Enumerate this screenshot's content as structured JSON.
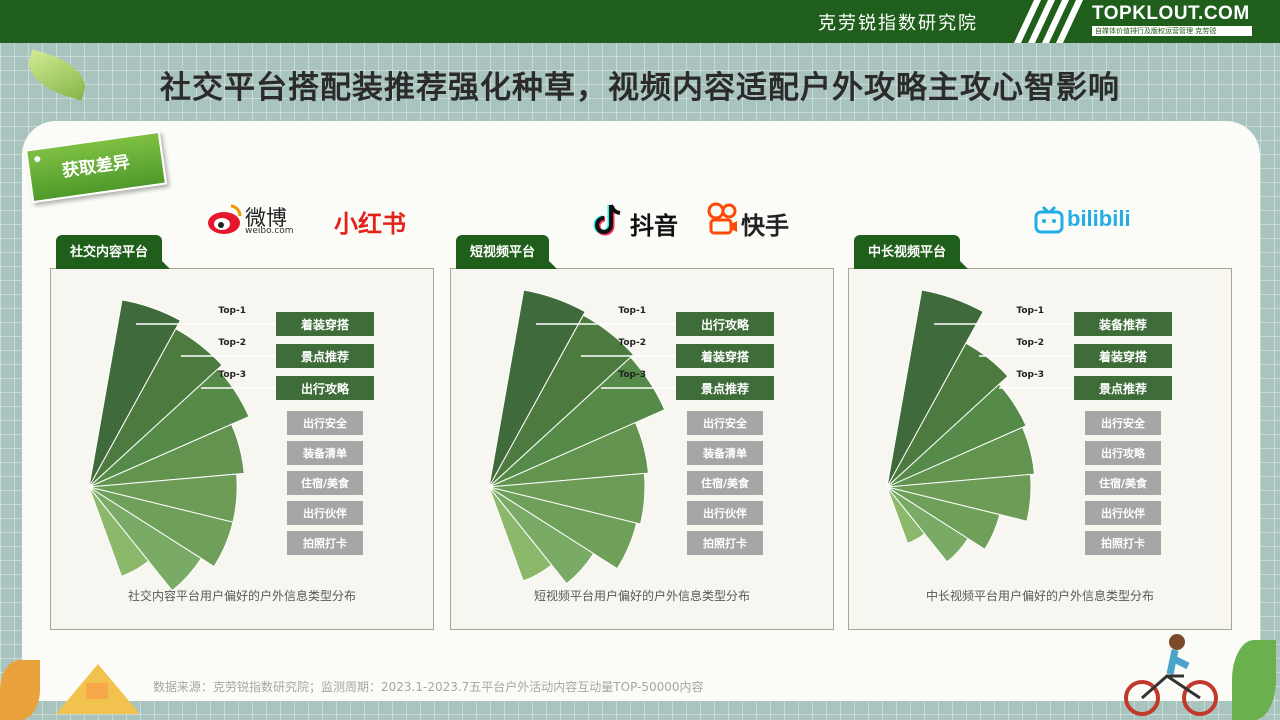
{
  "header": {
    "institute": "克劳锐指数研究院",
    "brand": "TOPKLOUT.COM",
    "brand_sub": "自媒体价值排行及版权运营管理 克劳锐"
  },
  "title": "社交平台搭配装推荐强化种草，视频内容适配户外攻略主攻心智影响",
  "tag": "获取差异",
  "logos": {
    "weibo": "微博",
    "weibo_sub": "weibo.com",
    "xiaohongshu": "小红书",
    "douyin": "抖音",
    "kuaishou": "快手",
    "bilibili": "bilibili"
  },
  "colors": {
    "header_green": "#1f5f1b",
    "top_box": "#3f6d3a",
    "other_box": "#a6a6a6",
    "wedge_palette": [
      "#3f6a3b",
      "#4d7a3e",
      "#568a48",
      "#63944f",
      "#6c9c56",
      "#6fa05a",
      "#7aab66",
      "#8cb86c"
    ]
  },
  "chart_data": [
    {
      "type": "polar-area",
      "tab": "社交内容平台",
      "caption": "社交内容平台用户偏好的户外信息类型分布",
      "top_labels": [
        "Top-1",
        "Top-2",
        "Top-3"
      ],
      "top_categories": [
        "着装穿搭",
        "景点推荐",
        "出行攻略"
      ],
      "other_categories": [
        "出行安全",
        "装备清单",
        "住宿/美食",
        "出行伙伴",
        "拍照打卡"
      ],
      "relative_values": [
        1.0,
        0.95,
        0.92,
        0.82,
        0.78,
        0.78,
        0.7,
        0.5
      ]
    },
    {
      "type": "polar-area",
      "tab": "短视频平台",
      "caption": "短视频平台用户偏好的户外信息类型分布",
      "top_labels": [
        "Top-1",
        "Top-2",
        "Top-3"
      ],
      "top_categories": [
        "出行攻略",
        "着装穿搭",
        "景点推荐"
      ],
      "other_categories": [
        "出行安全",
        "装备清单",
        "住宿/美食",
        "出行伙伴",
        "拍照打卡"
      ],
      "relative_values": [
        1.0,
        0.98,
        0.96,
        0.8,
        0.78,
        0.76,
        0.62,
        0.5
      ]
    },
    {
      "type": "polar-area",
      "tab": "中长视频平台",
      "caption": "中长视频平台用户偏好的户外信息类型分布",
      "top_labels": [
        "Top-1",
        "Top-2",
        "Top-3"
      ],
      "top_categories": [
        "装备推荐",
        "着装穿搭",
        "景点推荐"
      ],
      "other_categories": [
        "出行安全",
        "出行攻略",
        "住宿/美食",
        "出行伙伴",
        "拍照打卡"
      ],
      "relative_values": [
        1.0,
        0.82,
        0.76,
        0.74,
        0.72,
        0.58,
        0.48,
        0.3
      ]
    }
  ],
  "footer": "数据来源：克劳锐指数研究院；监测周期：2023.1-2023.7五平台户外活动内容互动量TOP-50000内容"
}
